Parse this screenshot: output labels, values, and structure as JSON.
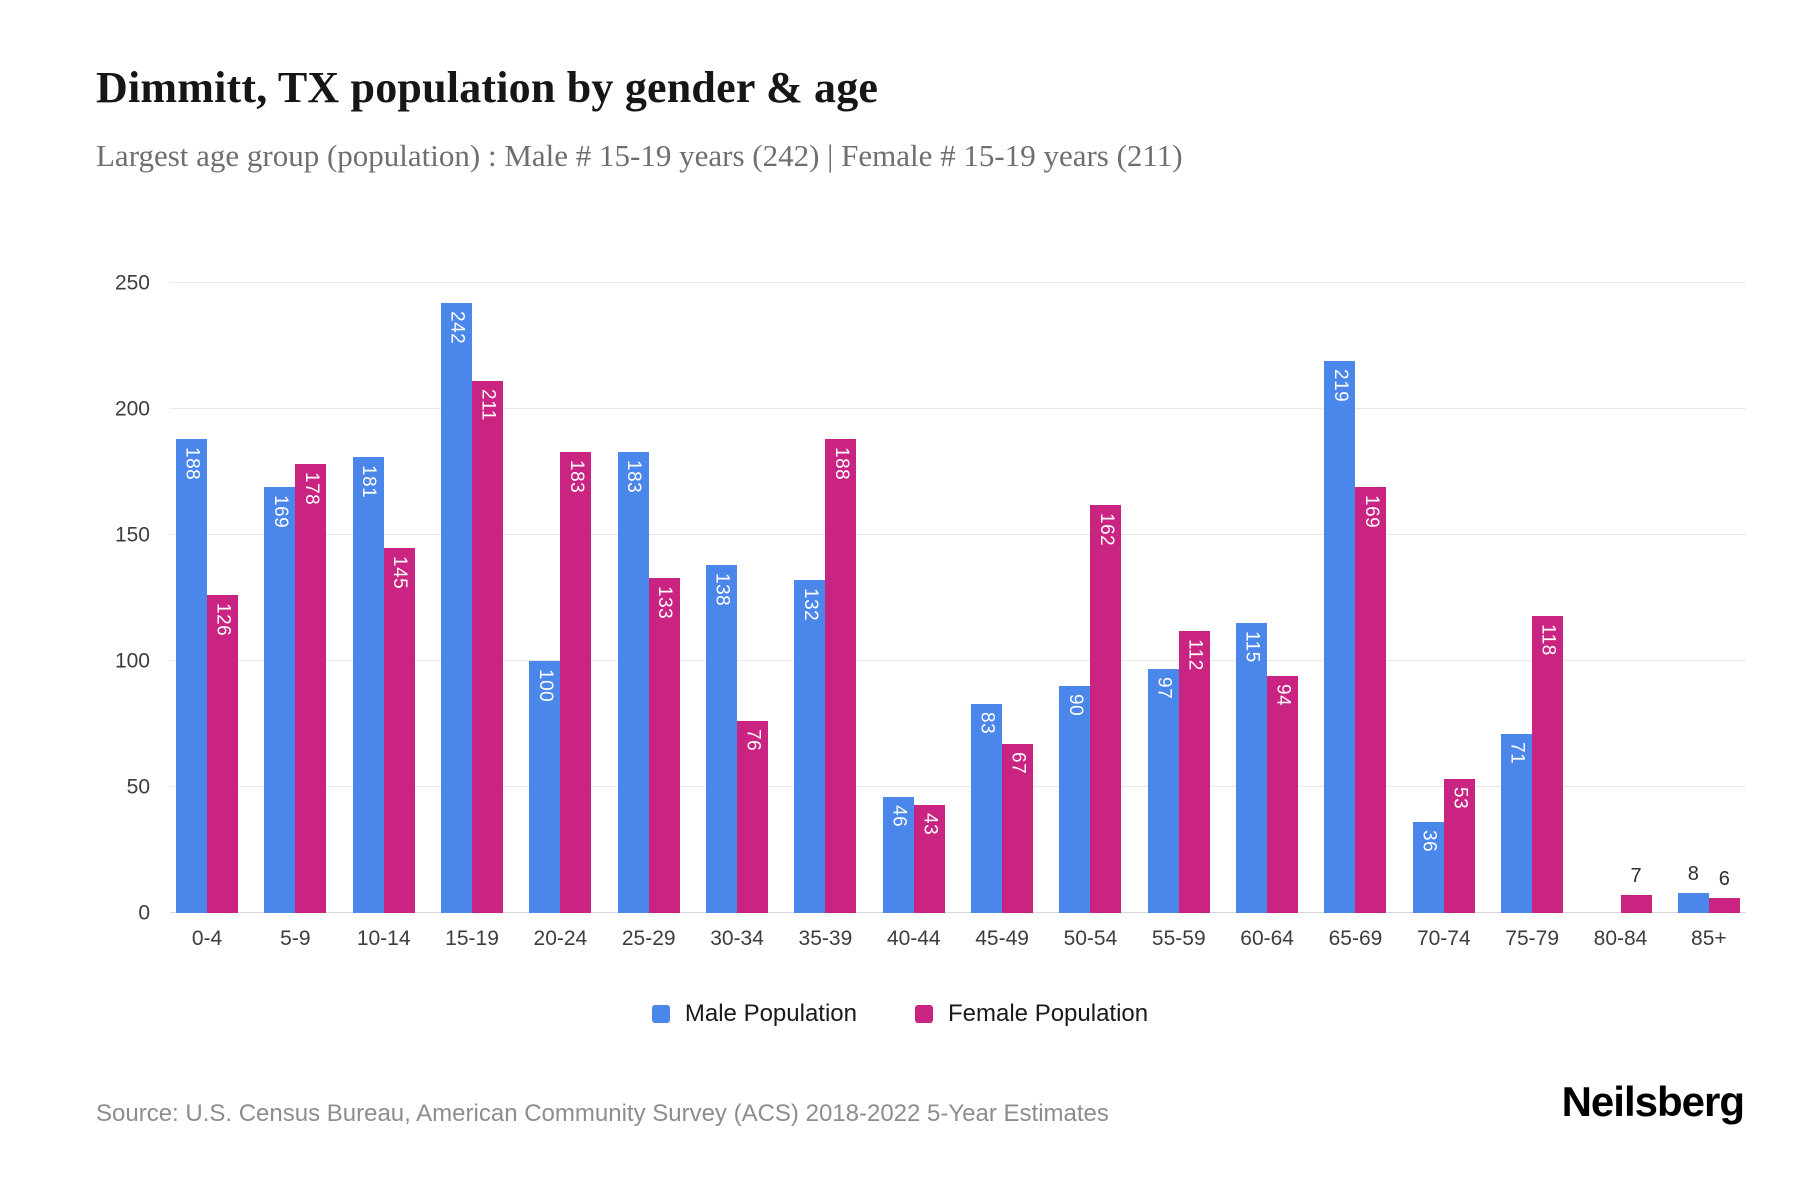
{
  "title": "Dimmitt, TX population by gender & age",
  "subtitle": "Largest age group (population) : Male # 15-19 years (242) | Female # 15-19 years (211)",
  "source": "Source: U.S. Census Bureau, American Community Survey (ACS) 2018-2022 5-Year Estimates",
  "brand": "Neilsberg",
  "colors": {
    "male": "#4b87ea",
    "female": "#ca2483"
  },
  "legend": [
    {
      "label": "Male Population",
      "color": "#4b87ea"
    },
    {
      "label": "Female Population",
      "color": "#ca2483"
    }
  ],
  "chart_data": {
    "type": "bar",
    "title": "Dimmitt, TX population by gender & age",
    "xlabel": "",
    "ylabel": "",
    "ylim": [
      0,
      250
    ],
    "yticks": [
      0,
      50,
      100,
      150,
      200,
      250
    ],
    "grid": true,
    "legend_position": "bottom",
    "label_outside_below": 20,
    "categories": [
      "0-4",
      "5-9",
      "10-14",
      "15-19",
      "20-24",
      "25-29",
      "30-34",
      "35-39",
      "40-44",
      "45-49",
      "50-54",
      "55-59",
      "60-64",
      "65-69",
      "70-74",
      "75-79",
      "80-84",
      "85+"
    ],
    "series": [
      {
        "name": "Male Population",
        "color": "#4b87ea",
        "values": [
          188,
          169,
          181,
          242,
          100,
          183,
          138,
          132,
          46,
          83,
          90,
          97,
          115,
          219,
          36,
          71,
          0,
          8
        ]
      },
      {
        "name": "Female Population",
        "color": "#ca2483",
        "values": [
          126,
          178,
          145,
          211,
          183,
          133,
          76,
          188,
          43,
          67,
          162,
          112,
          94,
          169,
          53,
          118,
          7,
          6
        ]
      }
    ]
  }
}
